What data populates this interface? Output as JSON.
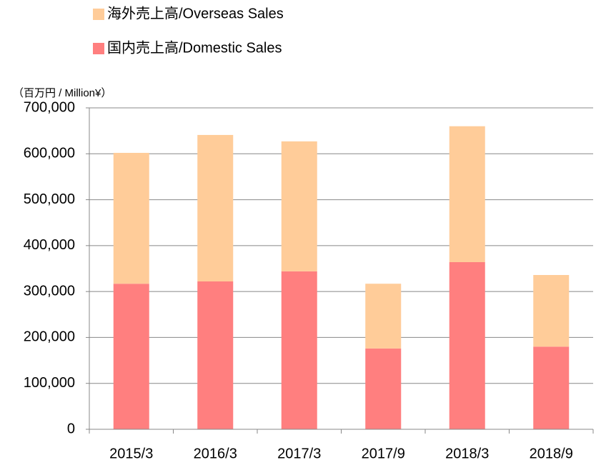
{
  "chart_data": {
    "type": "stacked_bar",
    "unit_label": "（百万円 / Million¥）",
    "categories": [
      "2015/3",
      "2016/3",
      "2017/3",
      "2017/9",
      "2018/3",
      "2018/9"
    ],
    "series": [
      {
        "name": "国内売上高/Domestic Sales",
        "color": "#ff7f7f",
        "values": [
          317000,
          322000,
          344000,
          176000,
          364000,
          180000
        ]
      },
      {
        "name": "海外売上高/Overseas Sales",
        "color": "#ffcc99",
        "values": [
          285000,
          319000,
          283000,
          141000,
          296000,
          156000
        ]
      }
    ],
    "ylim": [
      0,
      700000
    ],
    "yticks": [
      0,
      {
        "value": 100000,
        "label": "100,000"
      },
      {
        "value": 200000,
        "label": "200,000"
      },
      {
        "value": 300000,
        "label": "300,000"
      },
      {
        "value": 400000,
        "label": "400,000"
      },
      {
        "value": 500000,
        "label": "500,000"
      },
      {
        "value": 600000,
        "label": "600,000"
      },
      {
        "value": 700000,
        "label": "700,000"
      }
    ],
    "grid": true
  }
}
